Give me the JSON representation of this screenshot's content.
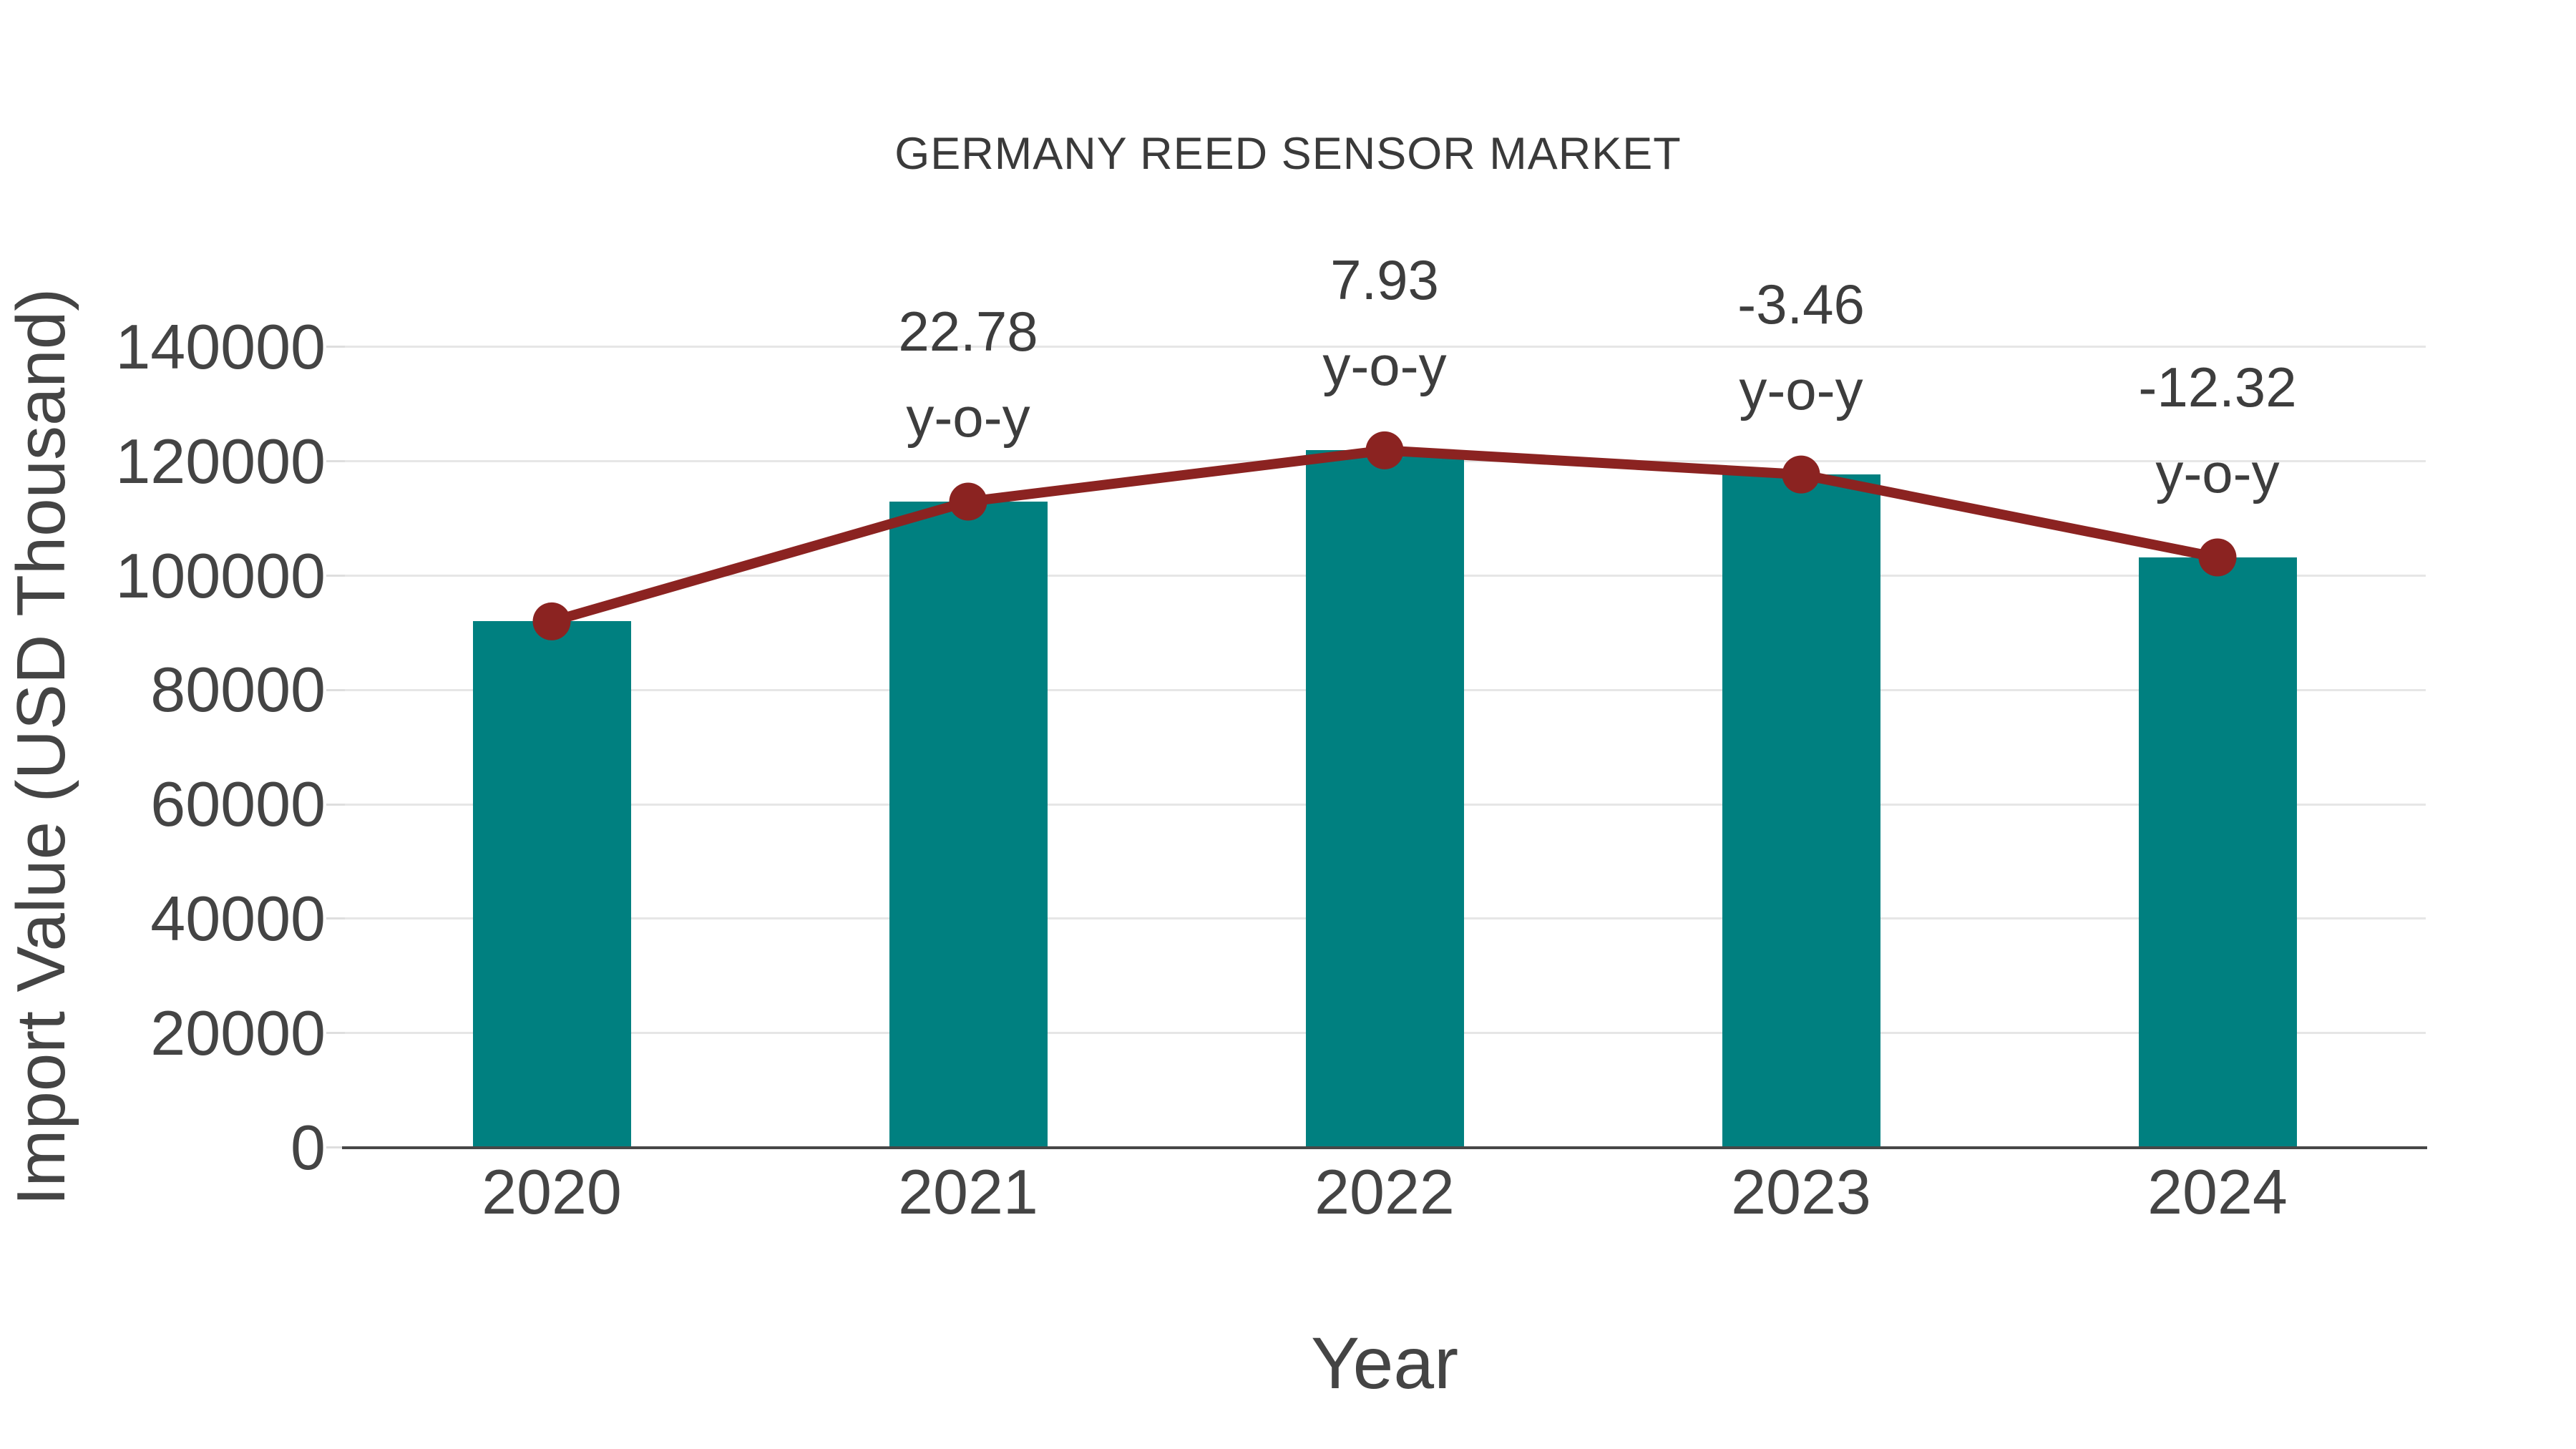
{
  "chart_data": {
    "type": "bar",
    "overlay": "line",
    "title": "GERMANY REED SENSOR MARKET",
    "xlabel": "Year",
    "ylabel": "Import Value (USD Thousand)",
    "categories": [
      "2020",
      "2021",
      "2022",
      "2023",
      "2024"
    ],
    "values": [
      92000,
      112958,
      121915,
      117697,
      103196
    ],
    "line_follows_bars": true,
    "yoy_labels": [
      null,
      "22.78",
      "7.93",
      "-3.46",
      "-12.32"
    ],
    "yoy_suffix": "y-o-y",
    "y_ticks": [
      0,
      20000,
      40000,
      60000,
      80000,
      100000,
      120000,
      140000
    ],
    "ylim": [
      0,
      147000
    ],
    "grid": true,
    "legend": false,
    "bar_color": "#008080",
    "line_color": "#8b2321"
  }
}
